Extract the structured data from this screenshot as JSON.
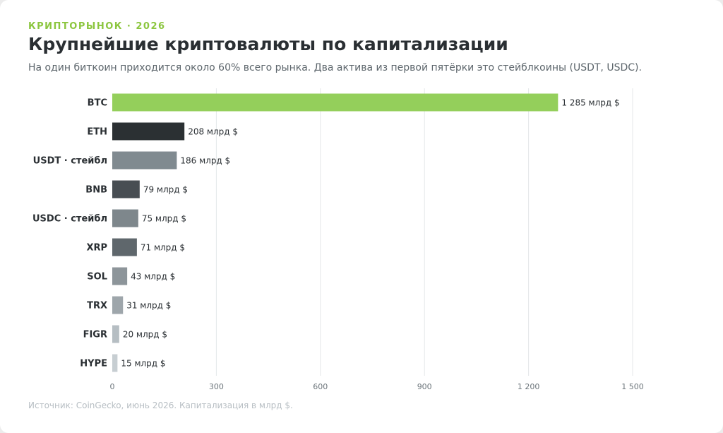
{
  "header": {
    "eyebrow": "КРИПТОРЫНОК · 2026",
    "title": "Крупнейшие криптовалюты по капитализации",
    "subtitle": "На один биткоин приходится около 60% всего рынка. Два актива из первой пятёрки это стейблкоины (USDT, USDC)."
  },
  "footer": {
    "source": "Источник: CoinGecko, июнь 2026. Капитализация в млрд $."
  },
  "chart_data": {
    "type": "bar",
    "orientation": "horizontal",
    "categories": [
      "BTC",
      "ETH",
      "USDT · стейбл",
      "BNB",
      "USDC · стейбл",
      "XRP",
      "SOL",
      "TRX",
      "FIGR",
      "HYPE"
    ],
    "values": [
      1285,
      208,
      186,
      79,
      75,
      71,
      43,
      31,
      20,
      15
    ],
    "value_labels": [
      "1 285 млрд $",
      "208 млрд $",
      "186 млрд $",
      "79 млрд $",
      "75 млрд $",
      "71 млрд $",
      "43 млрд $",
      "31 млрд $",
      "20 млрд $",
      "15 млрд $"
    ],
    "bar_colors": [
      "#94cf5b",
      "#2b3033",
      "#808a90",
      "#484e53",
      "#7e878c",
      "#5f676c",
      "#8d959a",
      "#9ea6ab",
      "#b6bec3",
      "#c7ced2"
    ],
    "xlim": [
      0,
      1500
    ],
    "ticks": [
      0,
      300,
      600,
      900,
      1200,
      1500
    ],
    "tick_labels": [
      "0",
      "300",
      "600",
      "900",
      "1 200",
      "1 500"
    ],
    "grid": true,
    "xlabel": "",
    "ylabel": ""
  }
}
